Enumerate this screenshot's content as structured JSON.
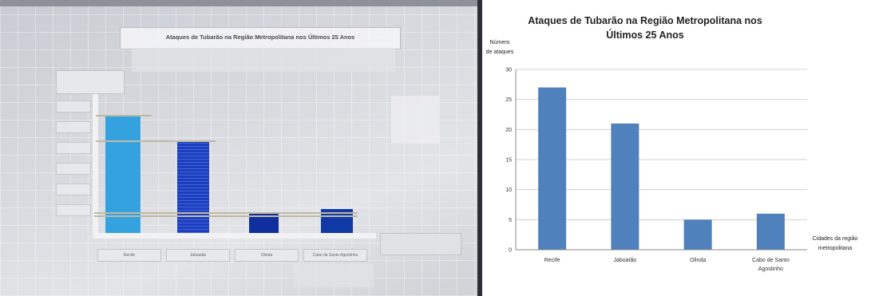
{
  "photo": {
    "title": "Ataques de Tubarão na Região Metropolitana nos Últimos 25 Anos",
    "bar_colors": [
      "#35a2e0",
      "#1b3fc2",
      "#102f9e",
      "#0f3aa6"
    ],
    "categories": [
      "Recife",
      "Jaboatão",
      "Olinda",
      "Cabo de Santo Agostinho"
    ]
  },
  "chart_data": {
    "type": "bar",
    "title": "Ataques de Tubarão na Região Metropolitana nos Últimos 25 Anos",
    "title_line1": "Ataques de Tubarão na Região Metropolitana  nos",
    "title_line2": "Últimos 25 Anos",
    "ylabel_line1": "Número",
    "ylabel_line2": "de ataques",
    "xlabel_line1": "Cidades da região",
    "xlabel_line2": "metropolitana",
    "categories": [
      "Recife",
      "Jaboatão",
      "Olinda",
      "Cabo de Santo Agostinho"
    ],
    "category_lines": [
      [
        "Recife"
      ],
      [
        "Jaboatão"
      ],
      [
        "Olinda"
      ],
      [
        "Cabo de Santo",
        "Agostinho"
      ]
    ],
    "values": [
      27,
      21,
      5,
      6
    ],
    "ylim": [
      0,
      30
    ],
    "yticks": [
      0,
      5,
      10,
      15,
      20,
      25,
      30
    ],
    "grid": true,
    "bar_color": "#4f81bd",
    "grid_color": "#d0d0d0"
  }
}
